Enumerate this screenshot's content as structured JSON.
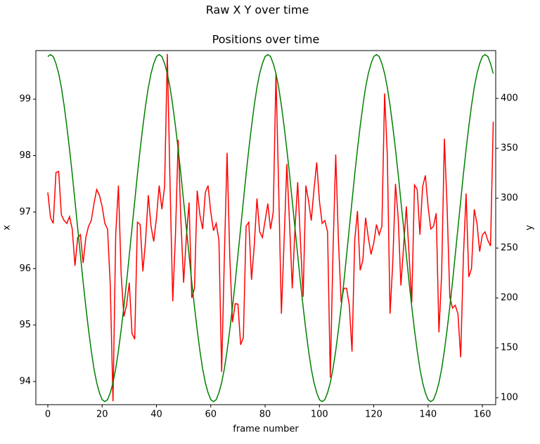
{
  "chart_data": {
    "type": "line",
    "suptitle": "Raw X Y over time",
    "title": "Positions over time",
    "xlabel": "frame number",
    "ylabel": "x",
    "y2label": "y",
    "x": [
      0,
      1,
      2,
      3,
      4,
      5,
      6,
      7,
      8,
      9,
      10,
      11,
      12,
      13,
      14,
      15,
      16,
      17,
      18,
      19,
      20,
      21,
      22,
      23,
      24,
      25,
      26,
      27,
      28,
      29,
      30,
      31,
      32,
      33,
      34,
      35,
      36,
      37,
      38,
      39,
      40,
      41,
      42,
      43,
      44,
      45,
      46,
      47,
      48,
      49,
      50,
      51,
      52,
      53,
      54,
      55,
      56,
      57,
      58,
      59,
      60,
      61,
      62,
      63,
      64,
      65,
      66,
      67,
      68,
      69,
      70,
      71,
      72,
      73,
      74,
      75,
      76,
      77,
      78,
      79,
      80,
      81,
      82,
      83,
      84,
      85,
      86,
      87,
      88,
      89,
      90,
      91,
      92,
      93,
      94,
      95,
      96,
      97,
      98,
      99,
      100,
      101,
      102,
      103,
      104,
      105,
      106,
      107,
      108,
      109,
      110,
      111,
      112,
      113,
      114,
      115,
      116,
      117,
      118,
      119,
      120,
      121,
      122,
      123,
      124,
      125,
      126,
      127,
      128,
      129,
      130,
      131,
      132,
      133,
      134,
      135,
      136,
      137,
      138,
      139,
      140,
      141,
      142,
      143,
      144,
      145,
      146,
      147,
      148,
      149,
      150,
      151,
      152,
      153,
      154,
      155,
      156,
      157,
      158,
      159,
      160,
      161,
      162,
      163,
      164
    ],
    "series": [
      {
        "color": "#ff0000",
        "values": [
          97.35,
          96.9,
          96.8,
          97.7,
          97.72,
          96.95,
          96.85,
          96.8,
          96.92,
          96.7,
          96.05,
          96.55,
          96.6,
          96.1,
          96.55,
          96.75,
          96.85,
          97.15,
          97.4,
          97.3,
          97.1,
          96.8,
          96.7,
          95.7,
          93.65,
          96.6,
          97.47,
          95.9,
          95.15,
          95.35,
          95.75,
          94.85,
          94.75,
          96.82,
          96.78,
          95.95,
          96.5,
          97.3,
          96.75,
          96.48,
          96.9,
          97.47,
          97.05,
          97.45,
          99.8,
          97.5,
          95.42,
          96.6,
          98.28,
          96.85,
          95.75,
          96.55,
          97.17,
          95.48,
          95.65,
          97.38,
          96.95,
          96.7,
          97.35,
          97.47,
          97.0,
          96.67,
          96.8,
          96.5,
          94.17,
          96.2,
          98.05,
          96.2,
          95.05,
          95.38,
          95.37,
          94.65,
          94.78,
          96.75,
          96.82,
          95.8,
          96.4,
          97.24,
          96.65,
          96.55,
          96.85,
          97.15,
          96.7,
          97.0,
          99.45,
          97.4,
          95.2,
          96.5,
          97.85,
          96.8,
          95.65,
          96.7,
          97.53,
          96.5,
          95.5,
          97.47,
          97.2,
          96.85,
          97.4,
          97.88,
          97.2,
          96.8,
          96.85,
          96.65,
          94.07,
          96.3,
          98.02,
          96.5,
          95.4,
          95.65,
          95.65,
          95.35,
          94.53,
          96.5,
          97.02,
          95.97,
          96.15,
          96.9,
          96.55,
          96.25,
          96.45,
          96.78,
          96.6,
          96.75,
          99.1,
          98.0,
          95.2,
          96.1,
          97.5,
          96.9,
          95.7,
          96.4,
          97.1,
          96.25,
          95.4,
          97.48,
          97.4,
          96.6,
          97.45,
          97.65,
          97.1,
          96.7,
          96.75,
          96.98,
          94.87,
          95.9,
          98.3,
          97.1,
          95.5,
          95.3,
          95.35,
          95.2,
          94.43,
          96.2,
          97.33,
          95.85,
          96.0,
          97.05,
          96.8,
          96.3,
          96.6,
          96.65,
          96.5,
          96.4,
          98.6
        ]
      },
      {
        "color": "#008000",
        "axis": "y2",
        "values": [
          442,
          444,
          442,
          435,
          425,
          411,
          393,
          372,
          349,
          324,
          297,
          270,
          243,
          216,
          191,
          168,
          147,
          129,
          115,
          105,
          98,
          96,
          98,
          105,
          115,
          129,
          147,
          168,
          191,
          216,
          243,
          270,
          297,
          324,
          349,
          372,
          393,
          411,
          425,
          435,
          442,
          444,
          442,
          435,
          425,
          411,
          393,
          372,
          349,
          324,
          297,
          270,
          243,
          216,
          191,
          168,
          147,
          129,
          115,
          105,
          98,
          96,
          98,
          105,
          115,
          129,
          147,
          168,
          191,
          216,
          243,
          270,
          297,
          324,
          349,
          372,
          393,
          411,
          425,
          435,
          442,
          444,
          442,
          435,
          425,
          411,
          393,
          372,
          349,
          324,
          297,
          270,
          243,
          216,
          191,
          168,
          147,
          129,
          115,
          105,
          98,
          96,
          98,
          105,
          115,
          129,
          147,
          168,
          191,
          216,
          243,
          270,
          297,
          324,
          349,
          372,
          393,
          411,
          425,
          435,
          442,
          444,
          442,
          435,
          425,
          411,
          393,
          372,
          349,
          324,
          297,
          270,
          243,
          216,
          191,
          168,
          147,
          129,
          115,
          105,
          98,
          96,
          98,
          105,
          115,
          129,
          147,
          168,
          191,
          216,
          243,
          270,
          297,
          324,
          349,
          372,
          393,
          411,
          425,
          435,
          442,
          444,
          442,
          435,
          425
        ]
      }
    ],
    "xlim": [
      -4.4,
      164.9
    ],
    "xticks": [
      0,
      20,
      40,
      60,
      80,
      100,
      120,
      140,
      160
    ],
    "ylim": [
      93.59,
      99.86
    ],
    "yticks": [
      94,
      95,
      96,
      97,
      98,
      99
    ],
    "y2lim": [
      93,
      448
    ],
    "y2ticks": [
      100,
      150,
      200,
      250,
      300,
      350,
      400
    ]
  }
}
